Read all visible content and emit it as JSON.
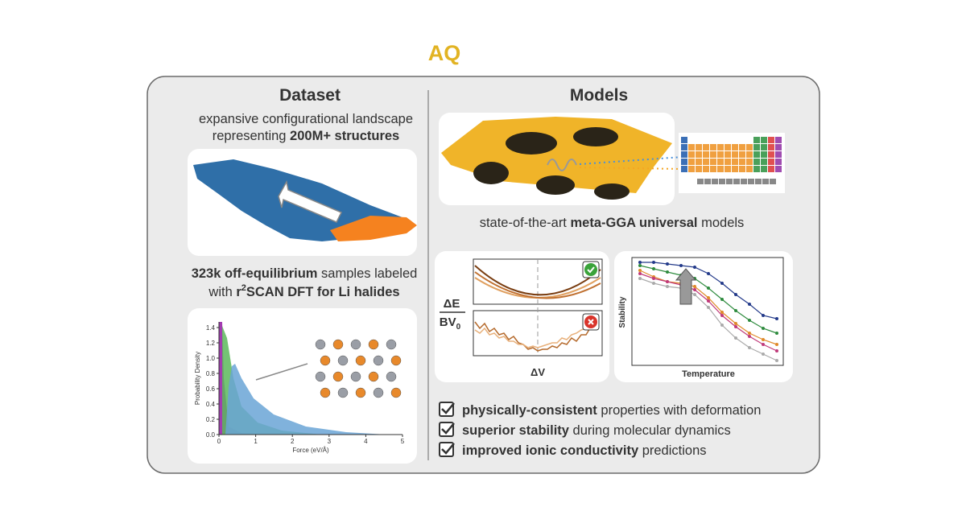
{
  "logo": "AQ",
  "dataset": {
    "title": "Dataset",
    "line1": "expansive configurational landscape",
    "line2_pre": "representing ",
    "line2_bold": "200M+ structures",
    "samples_bold": "323k off-equilibrium",
    "samples_rest": " samples labeled",
    "line4_pre": "with ",
    "line4_r": "r",
    "line4_sup": "2",
    "line4_bold": "SCAN DFT for Li halides",
    "histogram": {
      "xlabel": "Force (eV/Å)",
      "ylabel": "Probability Density",
      "xticks": [
        0,
        1,
        2,
        3,
        4,
        5
      ],
      "yticks": [
        {
          "value": 0,
          "label": "0.0"
        },
        {
          "value": 0.2,
          "label": "0.2"
        },
        {
          "value": 0.4,
          "label": "0.4"
        },
        {
          "value": 0.6,
          "label": "0.6"
        },
        {
          "value": 0.8,
          "label": "0.8"
        },
        {
          "value": 1.0,
          "label": "1.0"
        },
        {
          "value": 1.2,
          "label": "1.2"
        },
        {
          "value": 1.4,
          "label": "1.4"
        }
      ]
    }
  },
  "models": {
    "title": "Models",
    "caption_pre": "state-of-the-art ",
    "caption_bold": "meta-GGA universal",
    "caption_post": " models",
    "energy_label_top": "ΔE",
    "energy_label_bottom": "BV",
    "energy_label_sub": "0",
    "volume_label": "ΔV",
    "stability_ylabel": "Stability",
    "stability_xlabel": "Temperature",
    "checklist": [
      {
        "bold": "physically-consistent",
        "rest": " properties with deformation"
      },
      {
        "bold": "superior stability",
        "rest": " during molecular dynamics"
      },
      {
        "bold": "improved ionic conductivity",
        "rest": " predictions"
      }
    ]
  }
}
